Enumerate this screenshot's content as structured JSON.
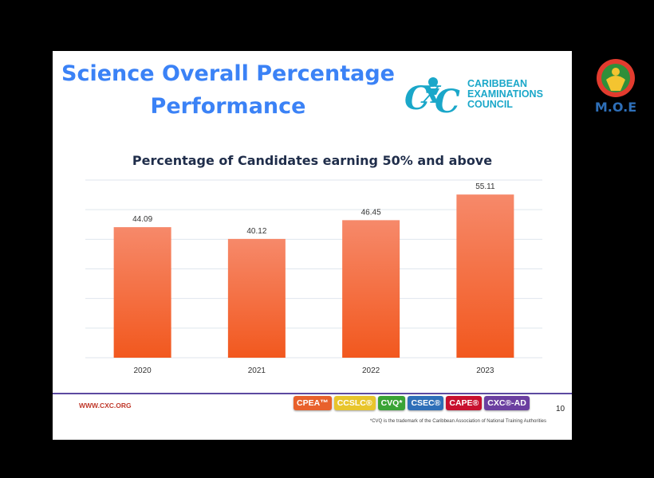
{
  "slide": {
    "title_line1": "Science Overall Percentage",
    "title_line2": "Performance",
    "logo_text": [
      "CARIBBEAN",
      "EXAMINATIONS",
      "COUNCIL"
    ],
    "footer_url": "WWW.CXC.ORG",
    "footnote": "*CVQ is the trademark of the Caribbean Association of National Training Authorities",
    "programmes": [
      {
        "label": "CPEA™",
        "color": "#e8612c"
      },
      {
        "label": "CCSLC®",
        "color": "#e8c52c"
      },
      {
        "label": "CVQ*",
        "color": "#3aa335"
      },
      {
        "label": "CSEC®",
        "color": "#2e6fb8"
      },
      {
        "label": "CAPE®",
        "color": "#c8102e"
      },
      {
        "label": "CXC®-AD",
        "color": "#6b3fa0"
      }
    ],
    "page_number": "10"
  },
  "moe_logo_text": "M.O.E",
  "chart_data": {
    "type": "bar",
    "title": "Percentage of Candidates earning 50% and above",
    "categories": [
      "2020",
      "2021",
      "2022",
      "2023"
    ],
    "values": [
      44.09,
      40.12,
      46.45,
      55.11
    ],
    "value_labels": [
      "44.09",
      "40.12",
      "46.45",
      "55.11"
    ],
    "ylim": [
      0,
      60
    ],
    "grid": true,
    "bar_color_top": "#f6896a",
    "bar_color_bottom": "#f2581e"
  }
}
